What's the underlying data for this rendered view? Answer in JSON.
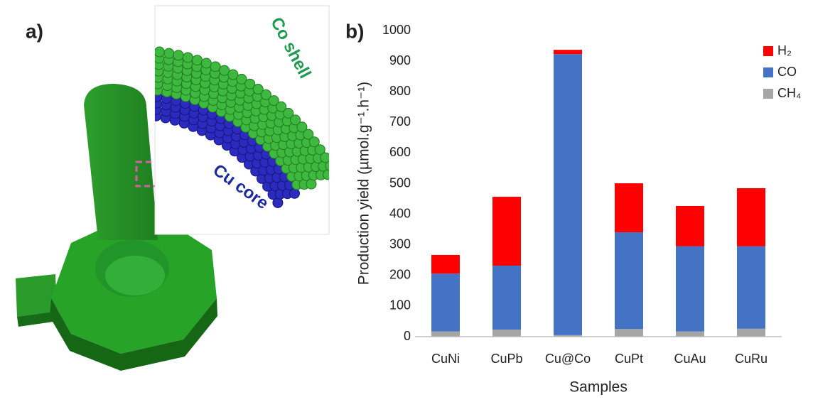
{
  "panel_a": {
    "label": "a)",
    "shell_label": "Co shell",
    "core_label": "Cu core"
  },
  "chart_data": {
    "type": "stacked_bar",
    "panel_label": "b)",
    "x_label": "Samples",
    "y_label": "Production yield (µmol.g⁻¹.h⁻¹)",
    "categories": [
      "CuNi",
      "CuPb",
      "Cu@Co",
      "CuPt",
      "CuAu",
      "CuRu"
    ],
    "series": [
      {
        "name": "CH₄",
        "color": "#a5a5a5",
        "values": [
          17,
          23,
          5,
          25,
          17,
          26
        ]
      },
      {
        "name": "CO",
        "color": "#4472c4",
        "values": [
          189,
          209,
          918,
          316,
          278,
          269
        ]
      },
      {
        "name": "H₂",
        "color": "#ff0000",
        "values": [
          61,
          225,
          14,
          160,
          132,
          190
        ]
      }
    ],
    "ylim": [
      0,
      1000
    ],
    "yticks": [
      0,
      100,
      200,
      300,
      400,
      500,
      600,
      700,
      800,
      900,
      1000
    ],
    "grid": false,
    "legend": "upper-right"
  }
}
